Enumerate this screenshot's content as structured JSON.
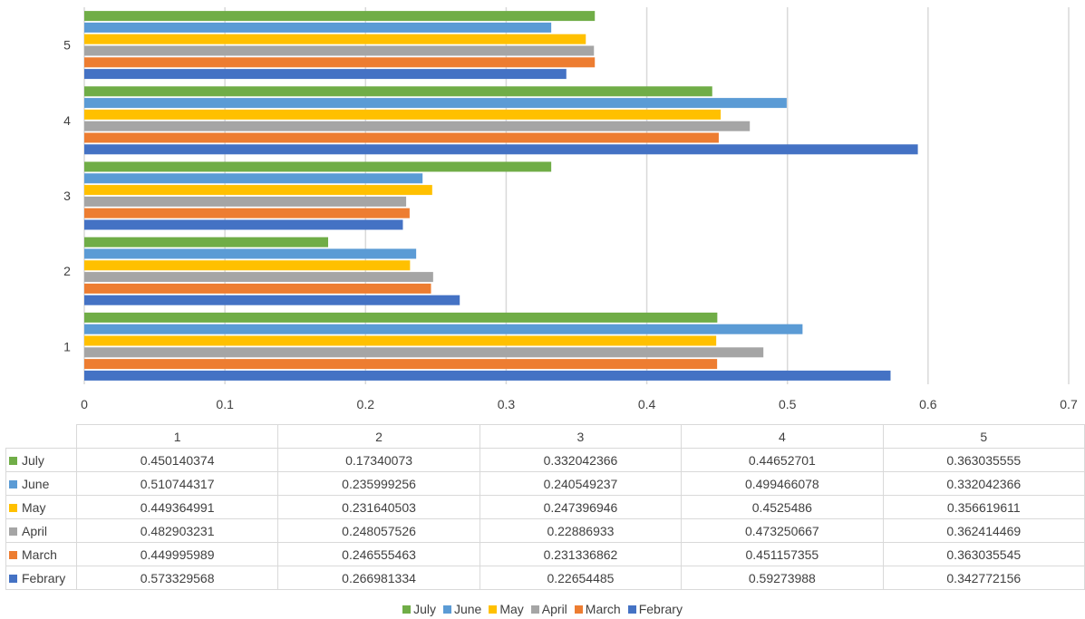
{
  "chart_data": {
    "type": "bar",
    "orientation": "horizontal",
    "categories": [
      "1",
      "2",
      "3",
      "4",
      "5"
    ],
    "series": [
      {
        "name": "July",
        "color": "#70ad47",
        "values": [
          0.450140374,
          0.17340073,
          0.332042366,
          0.44652701,
          0.363035555
        ]
      },
      {
        "name": "June",
        "color": "#5b9bd5",
        "values": [
          0.510744317,
          0.235999256,
          0.240549237,
          0.499466078,
          0.332042366
        ]
      },
      {
        "name": "May",
        "color": "#ffc000",
        "values": [
          0.449364991,
          0.231640503,
          0.247396946,
          0.4525486,
          0.356619611
        ]
      },
      {
        "name": "April",
        "color": "#a5a5a5",
        "values": [
          0.482903231,
          0.248057526,
          0.22886933,
          0.473250667,
          0.362414469
        ]
      },
      {
        "name": "March",
        "color": "#ed7d31",
        "values": [
          0.449995989,
          0.246555463,
          0.231336862,
          0.451157355,
          0.363035545
        ]
      },
      {
        "name": "Febrary",
        "color": "#4472c4",
        "values": [
          0.573329568,
          0.266981334,
          0.22654485,
          0.59273988,
          0.342772156
        ]
      }
    ],
    "xlim": [
      0,
      0.7
    ],
    "x_ticks": [
      "0",
      "0.1",
      "0.2",
      "0.3",
      "0.4",
      "0.5",
      "0.6",
      "0.7"
    ],
    "grid": true,
    "legend": "bottom",
    "data_table": true
  }
}
